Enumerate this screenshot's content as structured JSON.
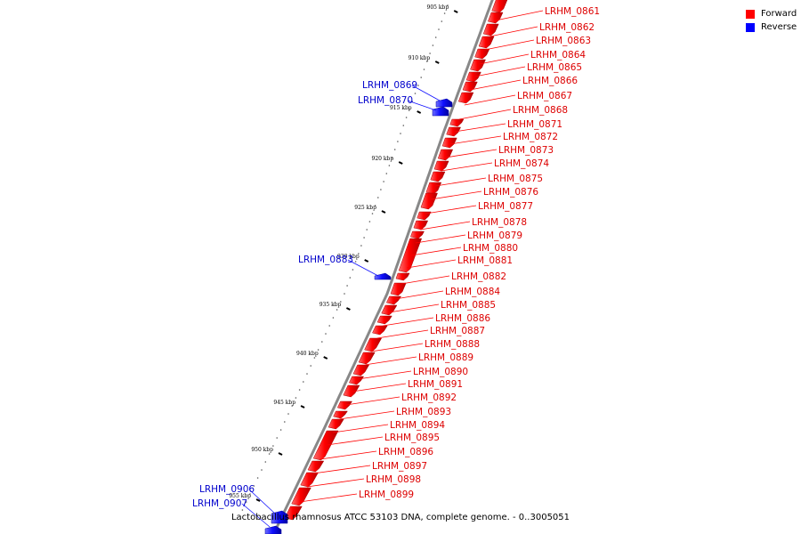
{
  "legend": [
    {
      "label": "Forward",
      "color": "#ff0000"
    },
    {
      "label": "Reverse",
      "color": "#0000ff"
    }
  ],
  "caption": "Lactobacillus rhamnosus ATCC 53103 DNA, complete genome. - 0..3005051",
  "colors": {
    "forward": "#ff0000",
    "forward_label": "#dd0000",
    "reverse": "#1010ff",
    "reverse_label": "#0000cc",
    "backbone": "#888888",
    "tick": "#000000"
  },
  "scale_ticks": [
    {
      "kbp": 905,
      "label": "905 kbp"
    },
    {
      "kbp": 910,
      "label": "910 kbp"
    },
    {
      "kbp": 915,
      "label": "915 kbp"
    },
    {
      "kbp": 920,
      "label": "920 kbp"
    },
    {
      "kbp": 925,
      "label": "925 kbp"
    },
    {
      "kbp": 930,
      "label": "930 kbp"
    },
    {
      "kbp": 935,
      "label": "935 kbp"
    },
    {
      "kbp": 940,
      "label": "940 kbp"
    },
    {
      "kbp": 945,
      "label": "945 kbp"
    },
    {
      "kbp": 950,
      "label": "950 kbp"
    },
    {
      "kbp": 955,
      "label": "955 kbp"
    }
  ],
  "forward_genes": [
    {
      "id": "LRHM_0861"
    },
    {
      "id": "LRHM_0862"
    },
    {
      "id": "LRHM_0863"
    },
    {
      "id": "LRHM_0864"
    },
    {
      "id": "LRHM_0865"
    },
    {
      "id": "LRHM_0866"
    },
    {
      "id": "LRHM_0867"
    },
    {
      "id": "LRHM_0868"
    },
    {
      "id": "LRHM_0871"
    },
    {
      "id": "LRHM_0872"
    },
    {
      "id": "LRHM_0873"
    },
    {
      "id": "LRHM_0874"
    },
    {
      "id": "LRHM_0875"
    },
    {
      "id": "LRHM_0876"
    },
    {
      "id": "LRHM_0877"
    },
    {
      "id": "LRHM_0878"
    },
    {
      "id": "LRHM_0879"
    },
    {
      "id": "LRHM_0880"
    },
    {
      "id": "LRHM_0881"
    },
    {
      "id": "LRHM_0882"
    },
    {
      "id": "LRHM_0884"
    },
    {
      "id": "LRHM_0885"
    },
    {
      "id": "LRHM_0886"
    },
    {
      "id": "LRHM_0887"
    },
    {
      "id": "LRHM_0888"
    },
    {
      "id": "LRHM_0889"
    },
    {
      "id": "LRHM_0890"
    },
    {
      "id": "LRHM_0891"
    },
    {
      "id": "LRHM_0892"
    },
    {
      "id": "LRHM_0893"
    },
    {
      "id": "LRHM_0894"
    },
    {
      "id": "LRHM_0895"
    },
    {
      "id": "LRHM_0896"
    },
    {
      "id": "LRHM_0897"
    },
    {
      "id": "LRHM_0898"
    },
    {
      "id": "LRHM_0899"
    }
  ],
  "reverse_genes": [
    {
      "id": "LRHM_0869"
    },
    {
      "id": "LRHM_0870"
    },
    {
      "id": "LRHM_0883"
    },
    {
      "id": "LRHM_0906"
    },
    {
      "id": "LRHM_0907"
    }
  ]
}
